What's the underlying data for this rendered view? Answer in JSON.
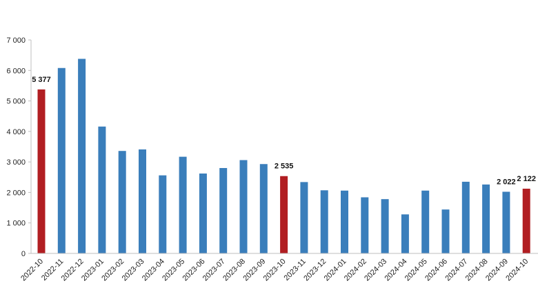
{
  "chart_data": {
    "type": "bar",
    "title": "",
    "xlabel": "",
    "ylabel": "",
    "ylim": [
      0,
      7000
    ],
    "yticks": [
      0,
      1000,
      2000,
      3000,
      4000,
      5000,
      6000,
      7000
    ],
    "ytick_labels": [
      "0",
      "1 000",
      "2 000",
      "3 000",
      "4 000",
      "5 000",
      "6 000",
      "7 000"
    ],
    "grid": false,
    "legend": "none",
    "categories": [
      "2022-10",
      "2022-11",
      "2022-12",
      "2023-01",
      "2023-02",
      "2023-03",
      "2023-04",
      "2023-05",
      "2023-06",
      "2023-07",
      "2023-08",
      "2023-09",
      "2023-10",
      "2023-11",
      "2023-12",
      "2024-01",
      "2024-02",
      "2024-03",
      "2024-04",
      "2024-05",
      "2024-06",
      "2024-07",
      "2024-08",
      "2024-09",
      "2024-10"
    ],
    "values": [
      5377,
      6080,
      6380,
      4160,
      3360,
      3410,
      2560,
      3170,
      2620,
      2800,
      3060,
      2930,
      2535,
      2340,
      2070,
      2060,
      1840,
      1780,
      1280,
      2060,
      1440,
      2350,
      2260,
      2022,
      2122
    ],
    "highlighted": [
      0,
      12,
      24
    ],
    "data_labels": [
      {
        "index": 0,
        "text": "5 377"
      },
      {
        "index": 12,
        "text": "2 535"
      },
      {
        "index": 23,
        "text": "2 022"
      },
      {
        "index": 24,
        "text": "2 122"
      }
    ],
    "colors": {
      "bar": "#3a7ebb",
      "highlight": "#b11e22",
      "axis": "#bfbfbf"
    }
  }
}
